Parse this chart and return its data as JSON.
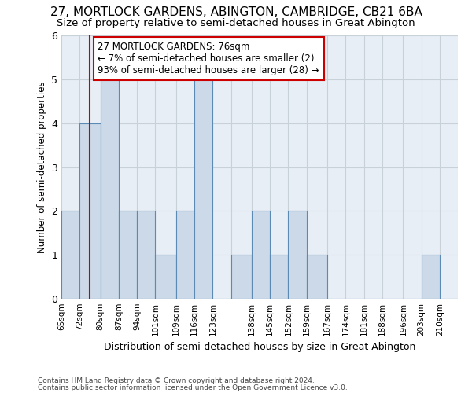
{
  "title1": "27, MORTLOCK GARDENS, ABINGTON, CAMBRIDGE, CB21 6BA",
  "title2": "Size of property relative to semi-detached houses in Great Abington",
  "xlabel": "Distribution of semi-detached houses by size in Great Abington",
  "ylabel": "Number of semi-detached properties",
  "footnote1": "Contains HM Land Registry data © Crown copyright and database right 2024.",
  "footnote2": "Contains public sector information licensed under the Open Government Licence v3.0.",
  "annotation_line1": "27 MORTLOCK GARDENS: 76sqm",
  "annotation_line2": "← 7% of semi-detached houses are smaller (2)",
  "annotation_line3": "93% of semi-detached houses are larger (28) →",
  "bar_left_edges": [
    65,
    72,
    80,
    87,
    94,
    101,
    109,
    116,
    123,
    130,
    138,
    145,
    152,
    159,
    167,
    174,
    181,
    188,
    196,
    203,
    210
  ],
  "bar_widths": [
    7,
    8,
    7,
    7,
    7,
    8,
    7,
    7,
    7,
    8,
    7,
    7,
    7,
    8,
    7,
    7,
    7,
    8,
    7,
    7,
    7
  ],
  "bar_heights": [
    2,
    4,
    5,
    2,
    2,
    1,
    2,
    5,
    0,
    1,
    2,
    1,
    2,
    1,
    0,
    0,
    0,
    0,
    0,
    1,
    0
  ],
  "xtick_labels": [
    "65sqm",
    "72sqm",
    "80sqm",
    "87sqm",
    "94sqm",
    "101sqm",
    "109sqm",
    "116sqm",
    "123sqm",
    "",
    "138sqm",
    "145sqm",
    "152sqm",
    "159sqm",
    "167sqm",
    "174sqm",
    "181sqm",
    "188sqm",
    "196sqm",
    "203sqm",
    "210sqm"
  ],
  "bar_color": "#ccd9e8",
  "bar_edgecolor": "#5b8ab5",
  "property_line_x": 76,
  "property_line_color": "#cc0000",
  "ylim": [
    0,
    6
  ],
  "yticks": [
    0,
    1,
    2,
    3,
    4,
    5,
    6
  ],
  "grid_color": "#c8d0d8",
  "bg_color": "#ffffff",
  "plot_bg_color": "#e8eef5",
  "title1_fontsize": 11,
  "title2_fontsize": 9.5,
  "annotation_box_edgecolor": "#cc0000",
  "annotation_fontsize": 8.5
}
